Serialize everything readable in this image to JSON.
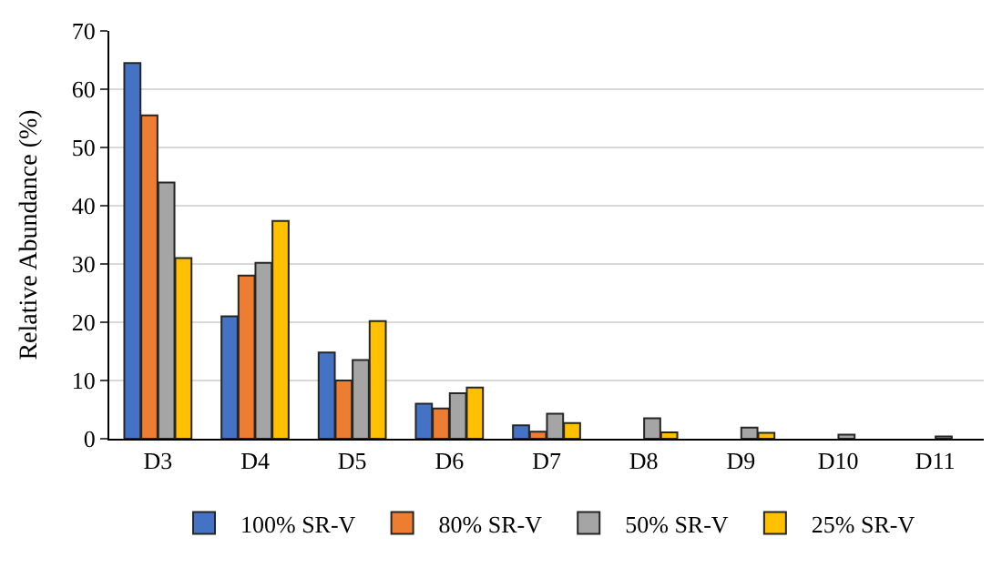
{
  "chart_data": {
    "type": "bar",
    "ylabel": "Relative Abundance (%)",
    "categories": [
      "D3",
      "D4",
      "D5",
      "D6",
      "D7",
      "D8",
      "D9",
      "D10",
      "D11"
    ],
    "series": [
      {
        "name": "100% SR-V",
        "color": "#4472c4",
        "values": [
          64.5,
          21,
          14.8,
          6,
          2.3,
          null,
          null,
          null,
          null
        ]
      },
      {
        "name": "80% SR-V",
        "color": "#ed7d31",
        "values": [
          55.5,
          28,
          10,
          5.2,
          1.2,
          null,
          null,
          null,
          null
        ]
      },
      {
        "name": "50% SR-V",
        "color": "#a5a5a5",
        "values": [
          44,
          30.2,
          13.5,
          7.8,
          4.3,
          3.5,
          1.9,
          0.7,
          0.4
        ]
      },
      {
        "name": "25% SR-V",
        "color": "#ffc000",
        "values": [
          31,
          37.4,
          20.2,
          8.8,
          2.7,
          1.1,
          1.0,
          null,
          null
        ]
      }
    ],
    "ylim": [
      0,
      70
    ],
    "yticks": [
      0,
      10,
      20,
      30,
      40,
      50,
      60,
      70
    ],
    "grid": "y",
    "legend": "bottom"
  }
}
